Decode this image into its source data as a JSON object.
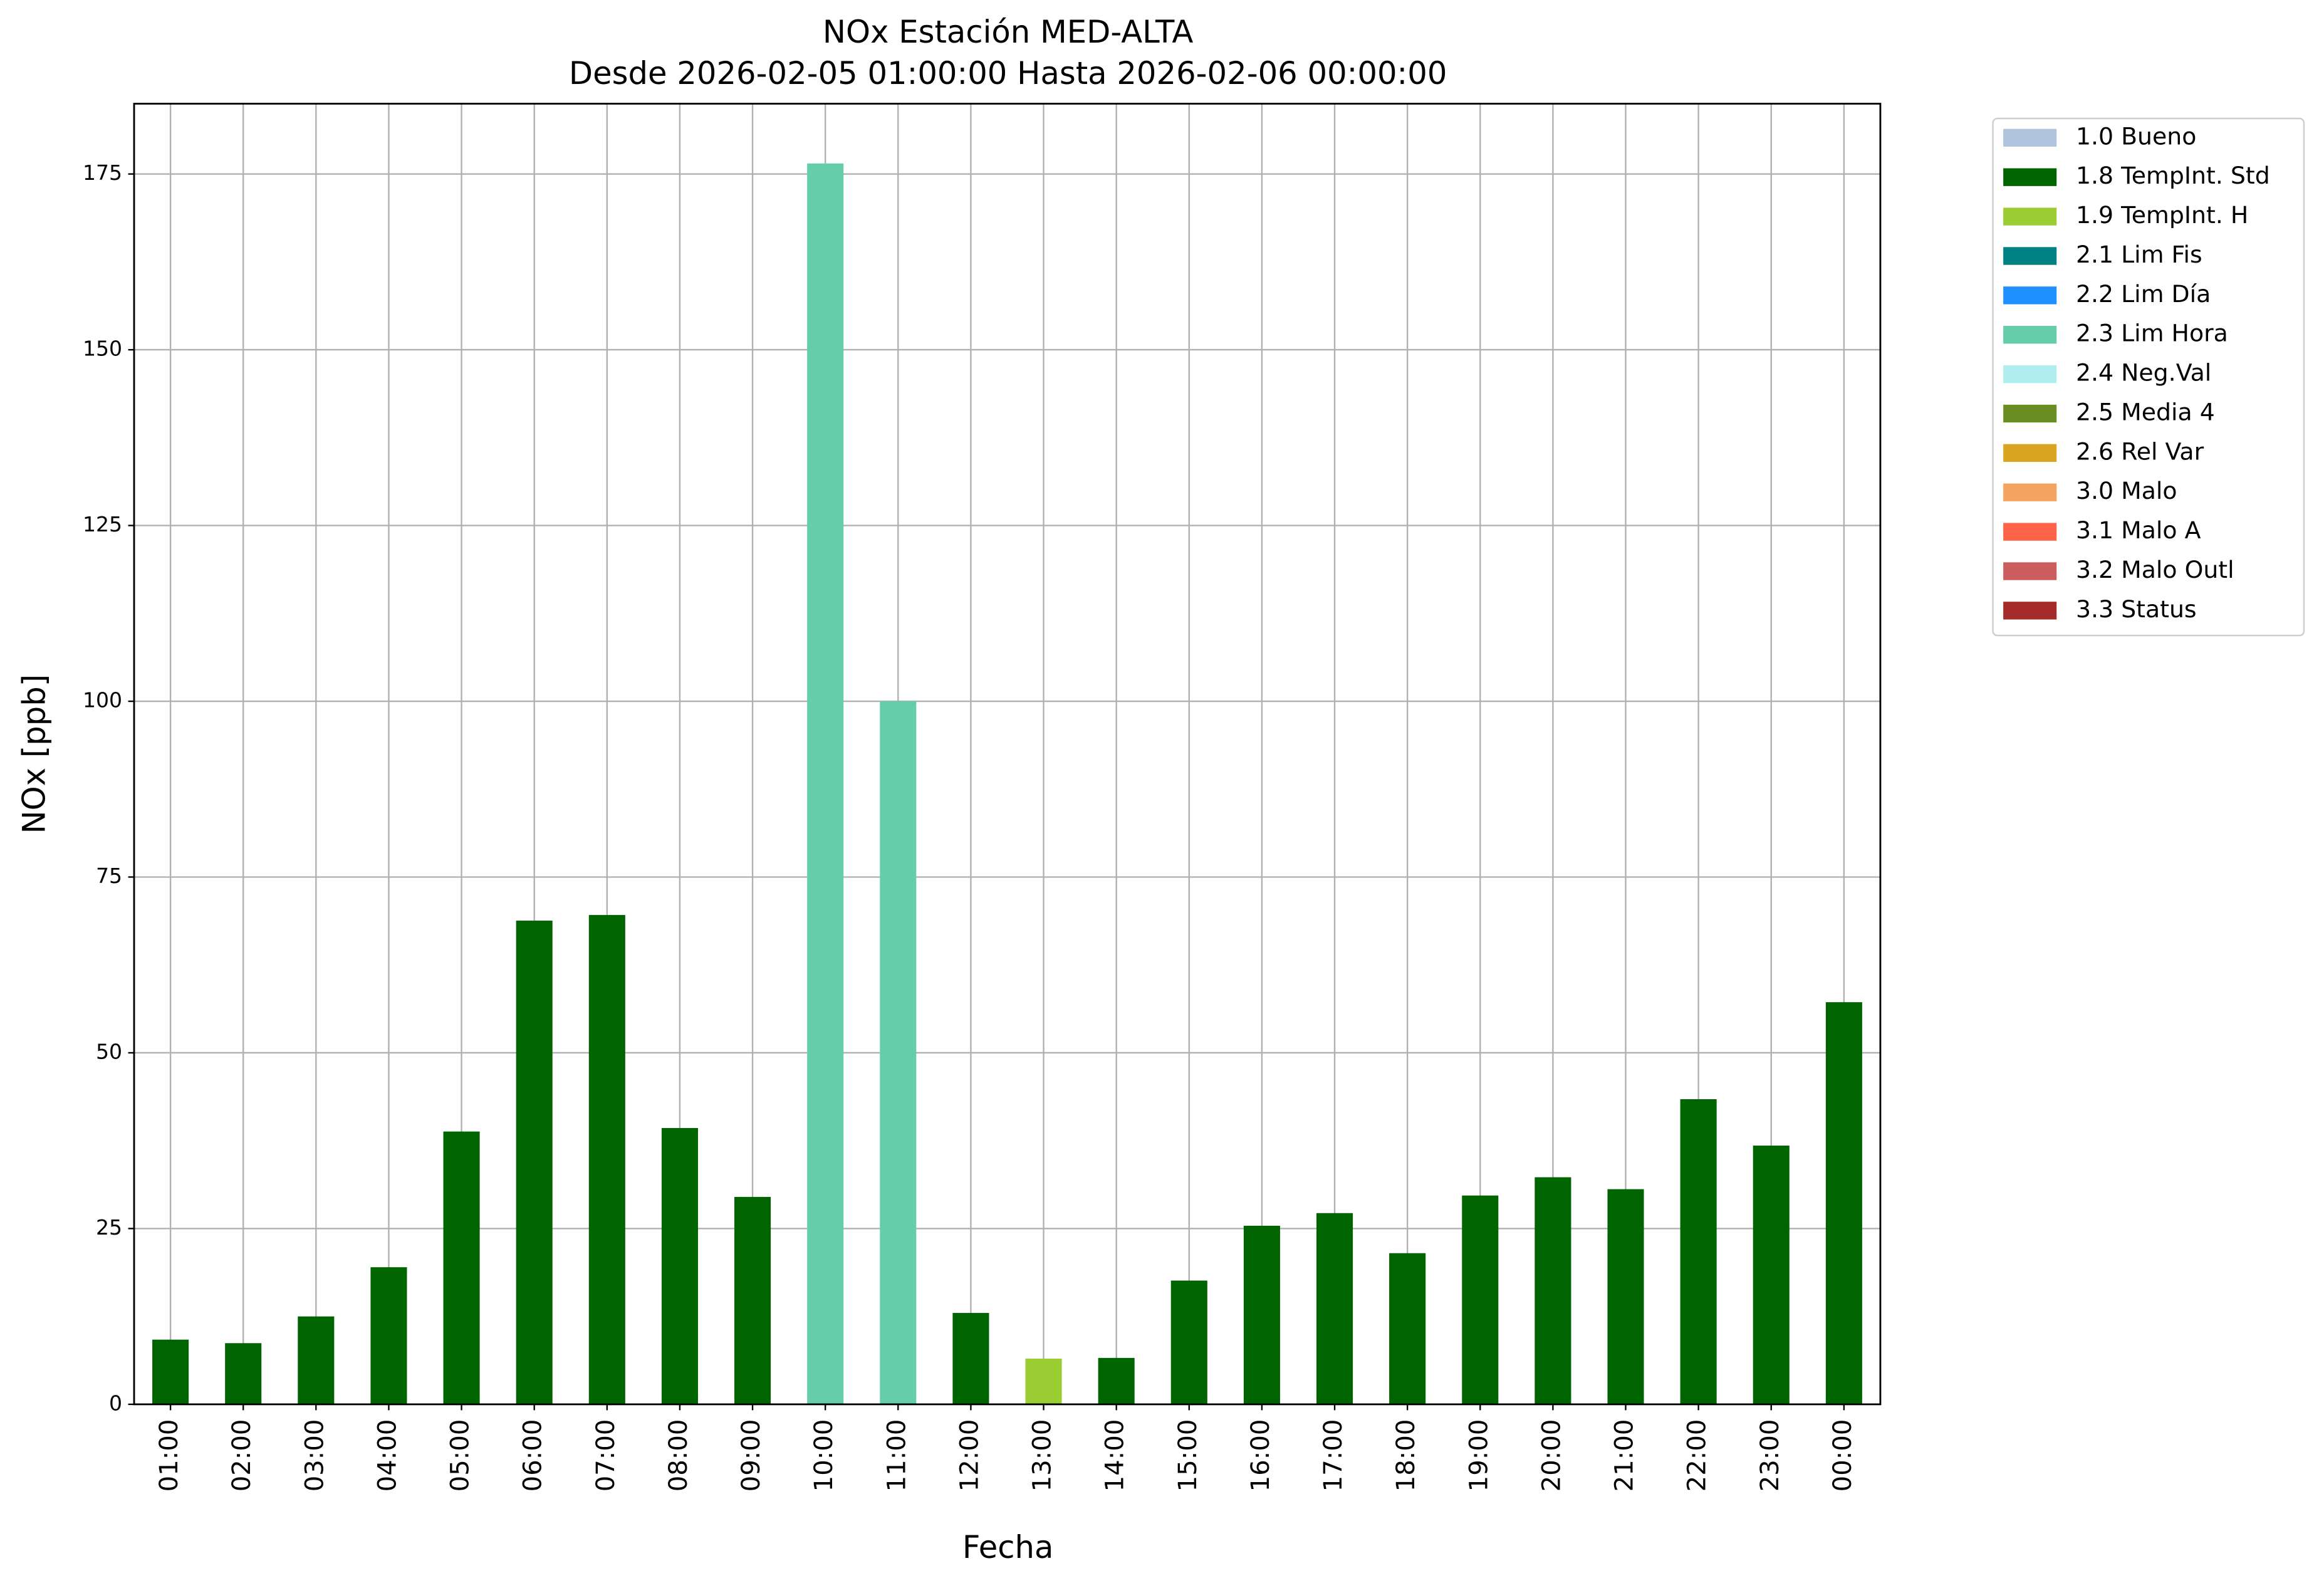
{
  "chart_data": {
    "type": "bar",
    "stacked": true,
    "title": "NOx Estación MED-ALTA",
    "subtitle": "Desde 2026-02-05 01:00:00 Hasta 2026-02-06 00:00:00",
    "x_label": "Fecha",
    "y_label": "NOx [ppb]",
    "categories": [
      "01:00",
      "02:00",
      "03:00",
      "04:00",
      "05:00",
      "06:00",
      "07:00",
      "08:00",
      "09:00",
      "10:00",
      "11:00",
      "12:00",
      "13:00",
      "14:00",
      "15:00",
      "16:00",
      "17:00",
      "18:00",
      "19:00",
      "20:00",
      "21:00",
      "22:00",
      "23:00",
      "00:00"
    ],
    "series": [
      {
        "name": "1.0 Bueno",
        "color": "#b0c4de",
        "values": [
          null,
          null,
          null,
          null,
          null,
          null,
          null,
          null,
          null,
          null,
          null,
          null,
          null,
          null,
          null,
          null,
          null,
          null,
          null,
          null,
          null,
          null,
          null,
          null
        ]
      },
      {
        "name": "1.8 TempInt. Std",
        "color": "#006400",
        "values": [
          9.2,
          8.7,
          12.5,
          19.5,
          38.8,
          68.8,
          69.6,
          39.3,
          29.5,
          null,
          null,
          13,
          null,
          6.6,
          17.6,
          25.4,
          27.2,
          21.5,
          29.7,
          32.3,
          30.6,
          43.4,
          36.8,
          57.2
        ]
      },
      {
        "name": "1.9 TempInt. H",
        "color": "#9acd32",
        "values": [
          null,
          null,
          null,
          null,
          null,
          null,
          null,
          null,
          null,
          null,
          null,
          null,
          6.5,
          null,
          null,
          null,
          null,
          null,
          null,
          null,
          null,
          null,
          null,
          null
        ]
      },
      {
        "name": "2.1 Lim Fis",
        "color": "#008080",
        "values": [
          null,
          null,
          null,
          null,
          null,
          null,
          null,
          null,
          null,
          null,
          null,
          null,
          null,
          null,
          null,
          null,
          null,
          null,
          null,
          null,
          null,
          null,
          null,
          null
        ]
      },
      {
        "name": "2.2 Lim Día",
        "color": "#1e90ff",
        "values": [
          null,
          null,
          null,
          null,
          null,
          null,
          null,
          null,
          null,
          null,
          null,
          null,
          null,
          null,
          null,
          null,
          null,
          null,
          null,
          null,
          null,
          null,
          null,
          null
        ]
      },
      {
        "name": "2.3 Lim Hora",
        "color": "#66cdaa",
        "values": [
          null,
          null,
          null,
          null,
          null,
          null,
          null,
          null,
          null,
          176.5,
          100,
          null,
          null,
          null,
          null,
          null,
          null,
          null,
          null,
          null,
          null,
          null,
          null,
          null
        ]
      },
      {
        "name": "2.4 Neg.Val",
        "color": "#afeeee",
        "values": [
          null,
          null,
          null,
          null,
          null,
          null,
          null,
          null,
          null,
          null,
          null,
          null,
          null,
          null,
          null,
          null,
          null,
          null,
          null,
          null,
          null,
          null,
          null,
          null
        ]
      },
      {
        "name": "2.5 Media 4",
        "color": "#6b8e23",
        "values": [
          null,
          null,
          null,
          null,
          null,
          null,
          null,
          null,
          null,
          null,
          null,
          null,
          null,
          null,
          null,
          null,
          null,
          null,
          null,
          null,
          null,
          null,
          null,
          null
        ]
      },
      {
        "name": "2.6 Rel Var",
        "color": "#daa520",
        "values": [
          null,
          null,
          null,
          null,
          null,
          null,
          null,
          null,
          null,
          null,
          null,
          null,
          null,
          null,
          null,
          null,
          null,
          null,
          null,
          null,
          null,
          null,
          null,
          null
        ]
      },
      {
        "name": "3.0 Malo",
        "color": "#f4a460",
        "values": [
          null,
          null,
          null,
          null,
          null,
          null,
          null,
          null,
          null,
          null,
          null,
          null,
          null,
          null,
          null,
          null,
          null,
          null,
          null,
          null,
          null,
          null,
          null,
          null
        ]
      },
      {
        "name": "3.1 Malo A",
        "color": "#ff6347",
        "values": [
          null,
          null,
          null,
          null,
          null,
          null,
          null,
          null,
          null,
          null,
          null,
          null,
          null,
          null,
          null,
          null,
          null,
          null,
          null,
          null,
          null,
          null,
          null,
          null
        ]
      },
      {
        "name": "3.2 Malo Outl",
        "color": "#cd5c5c",
        "values": [
          null,
          null,
          null,
          null,
          null,
          null,
          null,
          null,
          null,
          null,
          null,
          null,
          null,
          null,
          null,
          null,
          null,
          null,
          null,
          null,
          null,
          null,
          null,
          null
        ]
      },
      {
        "name": "3.3 Status",
        "color": "#a52a2a",
        "values": [
          null,
          null,
          null,
          null,
          null,
          null,
          null,
          null,
          null,
          null,
          null,
          null,
          null,
          null,
          null,
          null,
          null,
          null,
          null,
          null,
          null,
          null,
          null,
          null
        ]
      }
    ],
    "ylim": [
      0,
      185
    ],
    "yticks": [
      0,
      25,
      50,
      75,
      100,
      125,
      150,
      175
    ],
    "grid": true,
    "legend": "outside-right"
  }
}
